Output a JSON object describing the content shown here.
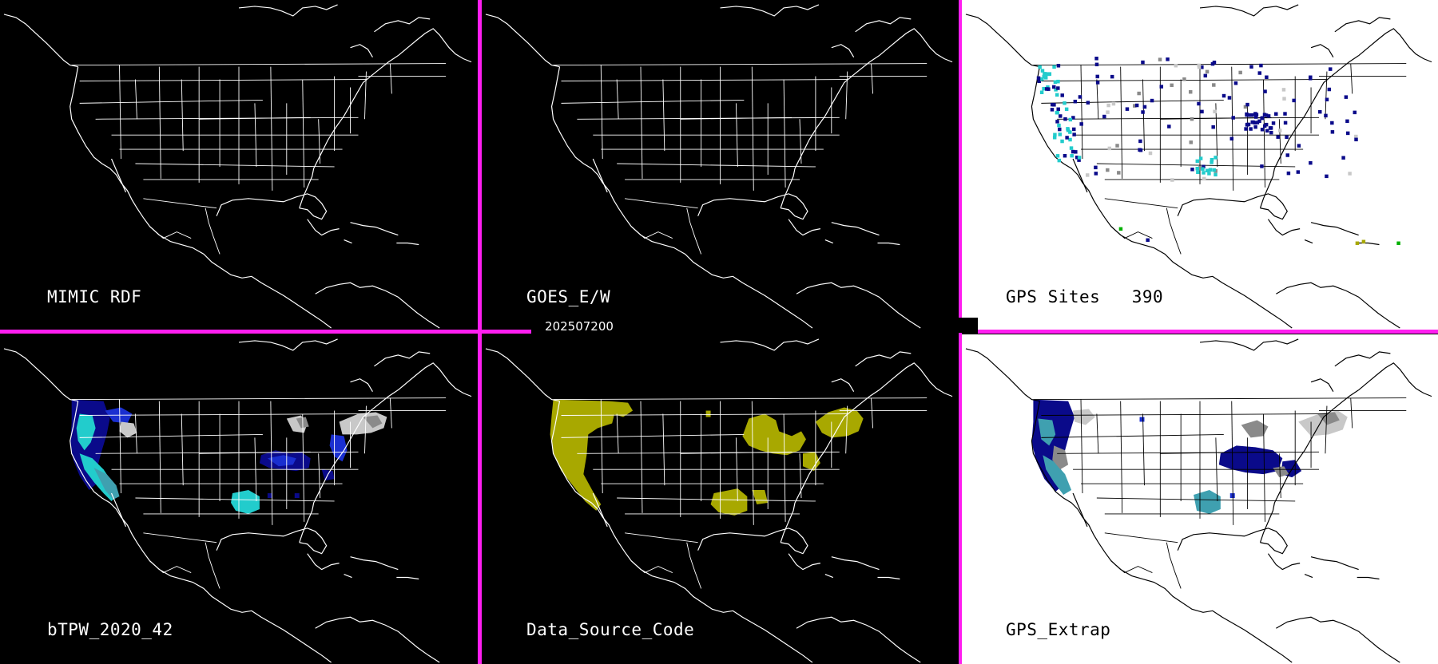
{
  "timestamp": "202507200",
  "colors": {
    "divider": "#ff1ef0",
    "navy": "#0a0a8a",
    "blue": "#1a2fd0",
    "cyan": "#22cccc",
    "teal": "#3fa0b0",
    "gray": "#8a8a8a",
    "light_gray": "#c8c8c8",
    "olive": "#a8a800",
    "green": "#00b000"
  },
  "panels": [
    {
      "id": "mimic-rdf",
      "label": "MIMIC RDF",
      "background": "black",
      "overlay": "none"
    },
    {
      "id": "goes-ew",
      "label": "GOES_E/W",
      "background": "black",
      "overlay": "none"
    },
    {
      "id": "gps-sites",
      "label": "GPS Sites   390",
      "background": "white",
      "overlay": "sites"
    },
    {
      "id": "btpw",
      "label": "bTPW_2020_42",
      "background": "black",
      "overlay": "btpw"
    },
    {
      "id": "data-source-code",
      "label": "Data_Source_Code",
      "background": "black",
      "overlay": "source"
    },
    {
      "id": "gps-extrap",
      "label": "GPS_Extrap",
      "background": "white",
      "overlay": "extrap"
    }
  ]
}
